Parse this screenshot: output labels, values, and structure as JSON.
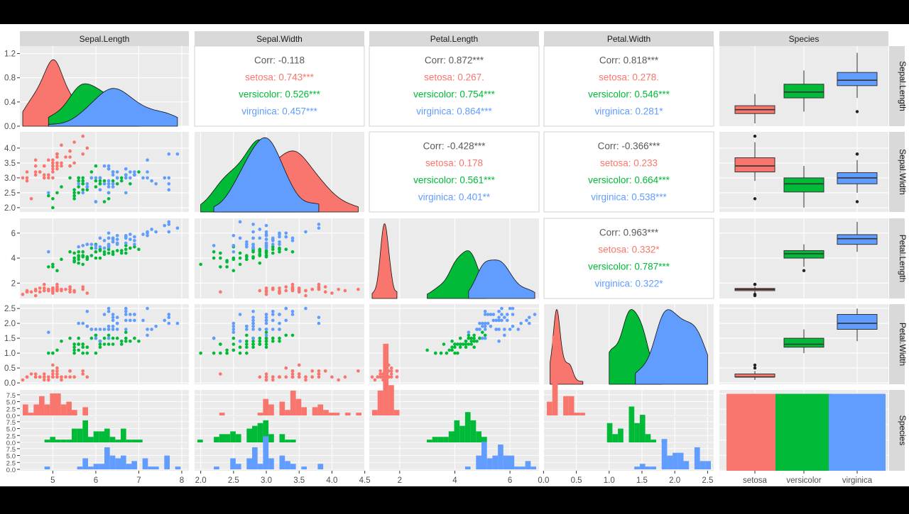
{
  "variables": [
    "Sepal.Length",
    "Sepal.Width",
    "Petal.Length",
    "Petal.Width",
    "Species"
  ],
  "species": [
    "setosa",
    "versicolor",
    "virginica"
  ],
  "colors": {
    "setosa": "#F8766D",
    "versicolor": "#00BA38",
    "virginica": "#619CFF",
    "corr_total": "#595959",
    "panel_bg": "#EBEBEB",
    "strip_bg": "#D9D9D9"
  },
  "correlations": [
    {
      "row": "Sepal.Length",
      "col": "Sepal.Width",
      "total": "Corr: -0.118",
      "setosa": "setosa: 0.743***",
      "versicolor": "versicolor: 0.526***",
      "virginica": "virginica: 0.457***"
    },
    {
      "row": "Sepal.Length",
      "col": "Petal.Length",
      "total": "Corr: 0.872***",
      "setosa": "setosa: 0.267.",
      "versicolor": "versicolor: 0.754***",
      "virginica": "virginica: 0.864***"
    },
    {
      "row": "Sepal.Length",
      "col": "Petal.Width",
      "total": "Corr: 0.818***",
      "setosa": "setosa: 0.278.",
      "versicolor": "versicolor: 0.546***",
      "virginica": "virginica: 0.281*"
    },
    {
      "row": "Sepal.Width",
      "col": "Petal.Length",
      "total": "Corr: -0.428***",
      "setosa": "setosa: 0.178",
      "versicolor": "versicolor: 0.561***",
      "virginica": "virginica: 0.401**"
    },
    {
      "row": "Sepal.Width",
      "col": "Petal.Width",
      "total": "Corr: -0.366***",
      "setosa": "setosa: 0.233",
      "versicolor": "versicolor: 0.664***",
      "virginica": "virginica: 0.538***"
    },
    {
      "row": "Petal.Length",
      "col": "Petal.Width",
      "total": "Corr: 0.963***",
      "setosa": "setosa: 0.332*",
      "versicolor": "versicolor: 0.787***",
      "virginica": "virginica: 0.322*"
    }
  ],
  "chart_data": {
    "type": "scatter",
    "x_ticks": {
      "Sepal.Length": [
        "5",
        "6",
        "7",
        "8"
      ],
      "Sepal.Width": [
        "2.0",
        "2.5",
        "3.0",
        "3.5",
        "4.0",
        "4.5"
      ],
      "Petal.Length": [
        "2",
        "4",
        "6"
      ],
      "Petal.Width": [
        "0.0",
        "0.5",
        "1.0",
        "1.5",
        "2.0",
        "2.5"
      ],
      "Species": [
        "setosa",
        "versicolor",
        "virginica"
      ]
    },
    "x_tick_values": {
      "Sepal.Length": [
        5,
        6,
        7,
        8
      ],
      "Sepal.Width": [
        2.0,
        2.5,
        3.0,
        3.5,
        4.0,
        4.5
      ],
      "Petal.Length": [
        2,
        4,
        6
      ],
      "Petal.Width": [
        0.0,
        0.5,
        1.0,
        1.5,
        2.0,
        2.5
      ]
    },
    "y_ticks": {
      "Sepal.Length": [
        "0.0",
        "0.4",
        "0.8",
        "1.2"
      ],
      "Sepal.Width": [
        "2.0",
        "2.5",
        "3.0",
        "3.5",
        "4.0"
      ],
      "Petal.Length": [
        "2",
        "4",
        "6"
      ],
      "Petal.Width": [
        "0.0",
        "0.5",
        "1.0",
        "1.5",
        "2.0",
        "2.5"
      ],
      "Species": [
        "0.0",
        "2.5",
        "5.0",
        "7.5"
      ]
    },
    "y_tick_values": {
      "Sepal.Length": [
        0,
        0.4,
        0.8,
        1.2
      ],
      "Sepal.Width": [
        2,
        2.5,
        3,
        3.5,
        4
      ],
      "Petal.Length": [
        2,
        4,
        6
      ],
      "Petal.Width": [
        0,
        0.5,
        1,
        1.5,
        2,
        2.5
      ],
      "Species": [
        0,
        2.5,
        5,
        7.5
      ]
    },
    "ranges": {
      "Sepal.Length": [
        4.3,
        8.1
      ],
      "Sepal.Width": [
        1.95,
        4.45
      ],
      "Petal.Length": [
        1.0,
        6.95
      ],
      "Petal.Width": [
        0.05,
        2.55
      ]
    },
    "bar_counts": {
      "setosa": 50,
      "versicolor": 50,
      "virginica": 50
    },
    "density_ymax": 1.3,
    "hist_ymax": 9,
    "samples": {
      "setosa": [
        [
          5.1,
          3.5,
          1.4,
          0.2
        ],
        [
          4.9,
          3.0,
          1.4,
          0.2
        ],
        [
          4.7,
          3.2,
          1.3,
          0.2
        ],
        [
          4.6,
          3.1,
          1.5,
          0.2
        ],
        [
          5.0,
          3.6,
          1.4,
          0.2
        ],
        [
          5.4,
          3.9,
          1.7,
          0.4
        ],
        [
          4.6,
          3.4,
          1.4,
          0.3
        ],
        [
          5.0,
          3.4,
          1.5,
          0.2
        ],
        [
          4.4,
          2.9,
          1.4,
          0.2
        ],
        [
          4.9,
          3.1,
          1.5,
          0.1
        ],
        [
          5.4,
          3.7,
          1.5,
          0.2
        ],
        [
          4.8,
          3.4,
          1.6,
          0.2
        ],
        [
          4.8,
          3.0,
          1.4,
          0.1
        ],
        [
          4.3,
          3.0,
          1.1,
          0.1
        ],
        [
          5.8,
          4.0,
          1.2,
          0.2
        ],
        [
          5.7,
          4.4,
          1.5,
          0.4
        ],
        [
          5.4,
          3.9,
          1.3,
          0.4
        ],
        [
          5.1,
          3.5,
          1.4,
          0.3
        ],
        [
          5.7,
          3.8,
          1.7,
          0.3
        ],
        [
          5.1,
          3.8,
          1.5,
          0.3
        ],
        [
          5.4,
          3.4,
          1.7,
          0.2
        ],
        [
          5.1,
          3.7,
          1.5,
          0.4
        ],
        [
          4.6,
          3.6,
          1.0,
          0.2
        ],
        [
          5.1,
          3.3,
          1.7,
          0.5
        ],
        [
          4.8,
          3.4,
          1.9,
          0.2
        ],
        [
          5.0,
          3.0,
          1.6,
          0.2
        ],
        [
          5.0,
          3.4,
          1.6,
          0.4
        ],
        [
          5.2,
          3.5,
          1.5,
          0.2
        ],
        [
          5.2,
          3.4,
          1.4,
          0.2
        ],
        [
          4.7,
          3.2,
          1.6,
          0.2
        ],
        [
          4.8,
          3.1,
          1.6,
          0.2
        ],
        [
          5.4,
          3.4,
          1.5,
          0.4
        ],
        [
          5.2,
          4.1,
          1.5,
          0.1
        ],
        [
          5.5,
          4.2,
          1.4,
          0.2
        ],
        [
          4.9,
          3.1,
          1.5,
          0.2
        ],
        [
          5.0,
          3.2,
          1.2,
          0.2
        ],
        [
          5.5,
          3.5,
          1.3,
          0.2
        ],
        [
          4.9,
          3.6,
          1.4,
          0.1
        ],
        [
          4.4,
          3.0,
          1.3,
          0.2
        ],
        [
          5.1,
          3.4,
          1.5,
          0.2
        ],
        [
          5.0,
          3.5,
          1.3,
          0.3
        ],
        [
          4.5,
          2.3,
          1.3,
          0.3
        ],
        [
          4.4,
          3.2,
          1.3,
          0.2
        ],
        [
          5.0,
          3.5,
          1.6,
          0.6
        ],
        [
          5.1,
          3.8,
          1.9,
          0.4
        ],
        [
          4.8,
          3.0,
          1.4,
          0.3
        ],
        [
          5.1,
          3.8,
          1.6,
          0.2
        ],
        [
          4.6,
          3.2,
          1.4,
          0.2
        ],
        [
          5.3,
          3.7,
          1.5,
          0.2
        ],
        [
          5.0,
          3.3,
          1.4,
          0.2
        ]
      ],
      "versicolor": [
        [
          7.0,
          3.2,
          4.7,
          1.4
        ],
        [
          6.4,
          3.2,
          4.5,
          1.5
        ],
        [
          6.9,
          3.1,
          4.9,
          1.5
        ],
        [
          5.5,
          2.3,
          4.0,
          1.3
        ],
        [
          6.5,
          2.8,
          4.6,
          1.5
        ],
        [
          5.7,
          2.8,
          4.5,
          1.3
        ],
        [
          6.3,
          3.3,
          4.7,
          1.6
        ],
        [
          4.9,
          2.4,
          3.3,
          1.0
        ],
        [
          6.6,
          2.9,
          4.6,
          1.3
        ],
        [
          5.2,
          2.7,
          3.9,
          1.4
        ],
        [
          5.0,
          2.0,
          3.5,
          1.0
        ],
        [
          5.9,
          3.0,
          4.2,
          1.5
        ],
        [
          6.0,
          2.2,
          4.0,
          1.0
        ],
        [
          6.1,
          2.9,
          4.7,
          1.4
        ],
        [
          5.6,
          2.9,
          3.6,
          1.3
        ],
        [
          6.7,
          3.1,
          4.4,
          1.4
        ],
        [
          5.6,
          3.0,
          4.5,
          1.5
        ],
        [
          5.8,
          2.7,
          4.1,
          1.0
        ],
        [
          6.2,
          2.2,
          4.5,
          1.5
        ],
        [
          5.6,
          2.5,
          3.9,
          1.1
        ],
        [
          5.9,
          3.2,
          4.8,
          1.8
        ],
        [
          6.1,
          2.8,
          4.0,
          1.3
        ],
        [
          6.3,
          2.5,
          4.9,
          1.5
        ],
        [
          6.1,
          2.8,
          4.7,
          1.2
        ],
        [
          6.4,
          2.9,
          4.3,
          1.3
        ],
        [
          6.6,
          3.0,
          4.4,
          1.4
        ],
        [
          6.8,
          2.8,
          4.8,
          1.4
        ],
        [
          6.7,
          3.0,
          5.0,
          1.7
        ],
        [
          6.0,
          2.9,
          4.5,
          1.5
        ],
        [
          5.7,
          2.6,
          3.5,
          1.0
        ],
        [
          5.5,
          2.4,
          3.8,
          1.1
        ],
        [
          5.5,
          2.4,
          3.7,
          1.0
        ],
        [
          5.8,
          2.7,
          3.9,
          1.2
        ],
        [
          6.0,
          2.7,
          5.1,
          1.6
        ],
        [
          5.4,
          3.0,
          4.5,
          1.5
        ],
        [
          6.0,
          3.4,
          4.5,
          1.6
        ],
        [
          6.7,
          3.1,
          4.7,
          1.5
        ],
        [
          6.3,
          2.3,
          4.4,
          1.3
        ],
        [
          5.6,
          3.0,
          4.1,
          1.3
        ],
        [
          5.5,
          2.5,
          4.0,
          1.3
        ],
        [
          5.5,
          2.6,
          4.4,
          1.2
        ],
        [
          6.1,
          3.0,
          4.6,
          1.4
        ],
        [
          5.8,
          2.6,
          4.0,
          1.2
        ],
        [
          5.0,
          2.3,
          3.3,
          1.0
        ],
        [
          5.6,
          2.7,
          4.2,
          1.3
        ],
        [
          5.7,
          3.0,
          4.2,
          1.2
        ],
        [
          5.7,
          2.9,
          4.2,
          1.3
        ],
        [
          6.2,
          2.9,
          4.3,
          1.3
        ],
        [
          5.1,
          2.5,
          3.0,
          1.1
        ],
        [
          5.7,
          2.8,
          4.1,
          1.3
        ]
      ],
      "virginica": [
        [
          6.3,
          3.3,
          6.0,
          2.5
        ],
        [
          5.8,
          2.7,
          5.1,
          1.9
        ],
        [
          7.1,
          3.0,
          5.9,
          2.1
        ],
        [
          6.3,
          2.9,
          5.6,
          1.8
        ],
        [
          6.5,
          3.0,
          5.8,
          2.2
        ],
        [
          7.6,
          3.0,
          6.6,
          2.1
        ],
        [
          4.9,
          2.5,
          4.5,
          1.7
        ],
        [
          7.3,
          2.9,
          6.3,
          1.8
        ],
        [
          6.7,
          2.5,
          5.8,
          1.8
        ],
        [
          7.2,
          3.6,
          6.1,
          2.5
        ],
        [
          6.5,
          3.2,
          5.1,
          2.0
        ],
        [
          6.4,
          2.7,
          5.3,
          1.9
        ],
        [
          6.8,
          3.0,
          5.5,
          2.1
        ],
        [
          5.7,
          2.5,
          5.0,
          2.0
        ],
        [
          5.8,
          2.8,
          5.1,
          2.4
        ],
        [
          6.4,
          3.2,
          5.3,
          2.3
        ],
        [
          6.5,
          3.0,
          5.5,
          1.8
        ],
        [
          7.7,
          3.8,
          6.7,
          2.2
        ],
        [
          7.7,
          2.6,
          6.9,
          2.3
        ],
        [
          6.0,
          2.2,
          5.0,
          1.5
        ],
        [
          6.9,
          3.2,
          5.7,
          2.3
        ],
        [
          5.6,
          2.8,
          4.9,
          2.0
        ],
        [
          7.7,
          2.8,
          6.7,
          2.0
        ],
        [
          6.3,
          2.7,
          4.9,
          1.8
        ],
        [
          6.7,
          3.3,
          5.7,
          2.1
        ],
        [
          7.2,
          3.2,
          6.0,
          1.8
        ],
        [
          6.2,
          2.8,
          4.8,
          1.8
        ],
        [
          6.1,
          3.0,
          4.9,
          1.8
        ],
        [
          6.4,
          2.8,
          5.6,
          2.1
        ],
        [
          7.2,
          3.0,
          5.8,
          1.6
        ],
        [
          7.4,
          2.8,
          6.1,
          1.9
        ],
        [
          7.9,
          3.8,
          6.4,
          2.0
        ],
        [
          6.4,
          2.8,
          5.6,
          2.2
        ],
        [
          6.3,
          2.8,
          5.1,
          1.5
        ],
        [
          6.1,
          2.6,
          5.6,
          1.4
        ],
        [
          7.7,
          3.0,
          6.1,
          2.3
        ],
        [
          6.3,
          3.4,
          5.6,
          2.4
        ],
        [
          6.4,
          3.1,
          5.5,
          1.8
        ],
        [
          6.0,
          3.0,
          4.8,
          1.8
        ],
        [
          6.9,
          3.1,
          5.4,
          2.1
        ],
        [
          6.7,
          3.1,
          5.6,
          2.4
        ],
        [
          6.9,
          3.1,
          5.1,
          2.3
        ],
        [
          5.8,
          2.7,
          5.1,
          1.9
        ],
        [
          6.8,
          3.2,
          5.9,
          2.3
        ],
        [
          6.7,
          3.3,
          5.7,
          2.5
        ],
        [
          6.7,
          3.0,
          5.2,
          2.3
        ],
        [
          6.3,
          2.5,
          5.0,
          1.9
        ],
        [
          6.5,
          3.0,
          5.2,
          2.0
        ],
        [
          6.2,
          3.4,
          5.4,
          2.3
        ],
        [
          5.9,
          3.0,
          5.1,
          1.8
        ]
      ]
    }
  }
}
